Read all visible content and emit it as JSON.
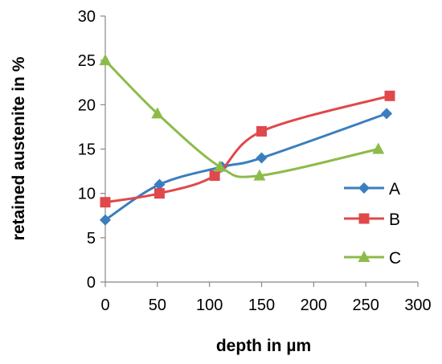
{
  "chart_data": {
    "type": "line",
    "xlabel": "depth in µm",
    "ylabel": "retained austenite in %",
    "xlim": [
      0,
      300
    ],
    "ylim": [
      0,
      30
    ],
    "x_ticks": [
      0,
      50,
      100,
      150,
      200,
      250,
      300
    ],
    "y_ticks": [
      0,
      5,
      10,
      15,
      20,
      25,
      30
    ],
    "grid": false,
    "smooth": true,
    "legend_position": "right",
    "series": [
      {
        "name": "A",
        "color": "#3a7ebf",
        "marker": "diamond",
        "x": [
          0,
          52,
          112,
          150,
          270
        ],
        "y": [
          7,
          11,
          13,
          14,
          19
        ]
      },
      {
        "name": "B",
        "color": "#e0484b",
        "marker": "square",
        "x": [
          0,
          52,
          105,
          150,
          273
        ],
        "y": [
          9,
          10,
          12,
          17,
          21
        ]
      },
      {
        "name": "C",
        "color": "#8dbb4a",
        "marker": "triangle",
        "x": [
          0,
          50,
          110,
          148,
          262
        ],
        "y": [
          25,
          19,
          13,
          12,
          15
        ]
      }
    ]
  }
}
